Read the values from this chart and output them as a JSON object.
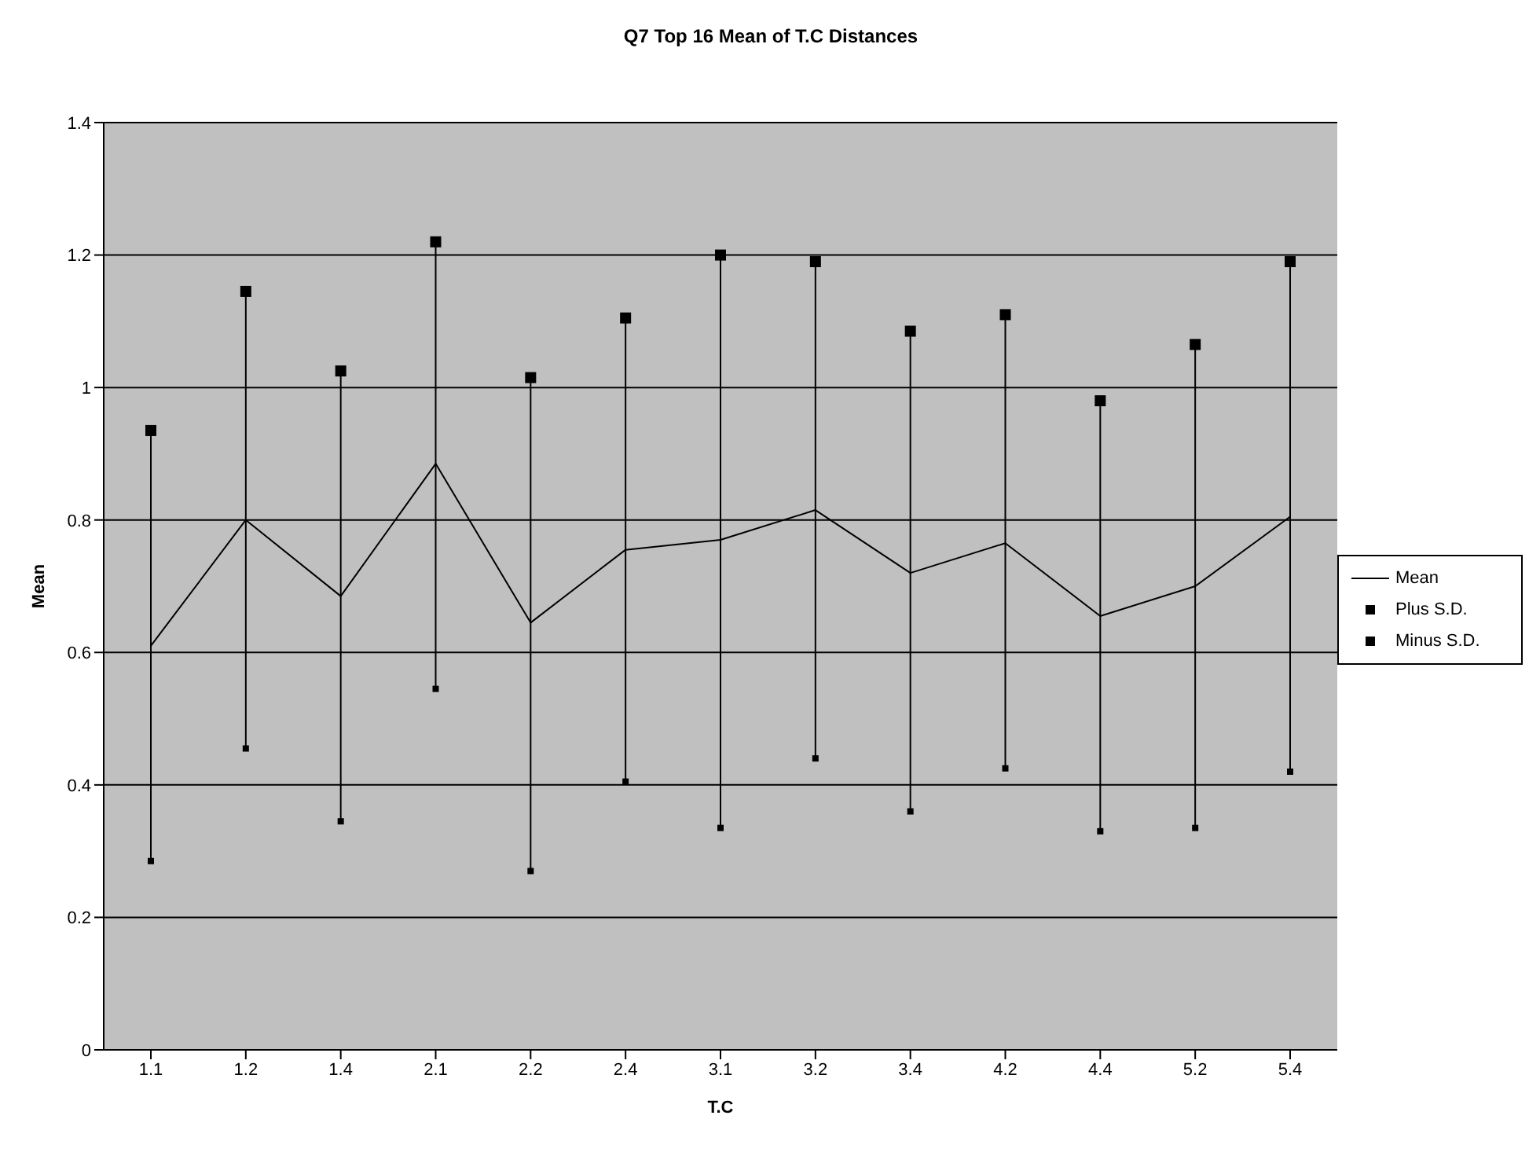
{
  "chart_data": {
    "type": "line",
    "title": "Q7 Top 16 Mean of T.C Distances",
    "xlabel": "T.C",
    "ylabel": "Mean",
    "categories": [
      "1.1",
      "1.2",
      "1.4",
      "2.1",
      "2.2",
      "2.4",
      "3.1",
      "3.2",
      "3.4",
      "4.2",
      "4.4",
      "5.2",
      "5.4"
    ],
    "series": [
      {
        "name": "Mean",
        "marker": "none",
        "color": "#000000",
        "values": [
          0.61,
          0.8,
          0.685,
          0.885,
          0.645,
          0.755,
          0.77,
          0.815,
          0.72,
          0.765,
          0.655,
          0.7,
          0.805
        ]
      },
      {
        "name": "Plus S.D.",
        "type": "scatter",
        "marker": "square",
        "color": "#000000",
        "values": [
          0.935,
          1.145,
          1.025,
          1.22,
          1.015,
          1.105,
          1.2,
          1.19,
          1.085,
          1.11,
          0.98,
          1.065,
          1.19
        ]
      },
      {
        "name": "Minus S.D.",
        "type": "scatter",
        "marker": "square",
        "color": "#000000",
        "values": [
          0.285,
          0.455,
          0.345,
          0.545,
          0.27,
          0.405,
          0.335,
          0.44,
          0.36,
          0.425,
          0.33,
          0.335,
          0.42
        ]
      }
    ],
    "ylim": [
      0,
      1.4
    ],
    "yticks": [
      0,
      0.2,
      0.4,
      0.6,
      0.8,
      1,
      1.2,
      1.4
    ],
    "grid": "y",
    "legend": "right"
  }
}
